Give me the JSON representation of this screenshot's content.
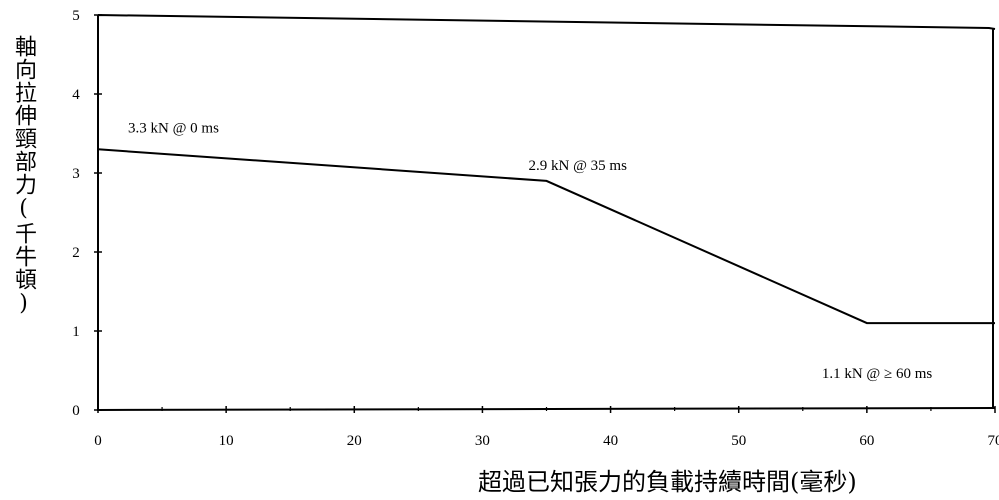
{
  "chart_data": {
    "type": "line",
    "title": "",
    "xlabel": "超過已知張力的負載持續時間(毫秒)",
    "ylabel": "軸向拉伸頸部力(千牛頓)",
    "xlim": [
      0,
      70
    ],
    "ylim": [
      0,
      5
    ],
    "x_ticks": [
      0,
      10,
      20,
      30,
      40,
      50,
      60,
      70
    ],
    "y_ticks": [
      0,
      1,
      2,
      3,
      4,
      5
    ],
    "grid": false,
    "series": [
      {
        "x": [
          0,
          35,
          60,
          70
        ],
        "y": [
          3.3,
          2.9,
          1.1,
          1.1
        ]
      }
    ],
    "annotations": [
      {
        "text": "3.3 kN @ 0 ms",
        "x": 0,
        "y": 3.3
      },
      {
        "text": "2.9 kN @ 35 ms",
        "x": 35,
        "y": 2.9
      },
      {
        "text": "1.1 kN @ ≥ 60 ms",
        "x": 60,
        "y": 1.1
      }
    ],
    "line_color": "#000000"
  }
}
